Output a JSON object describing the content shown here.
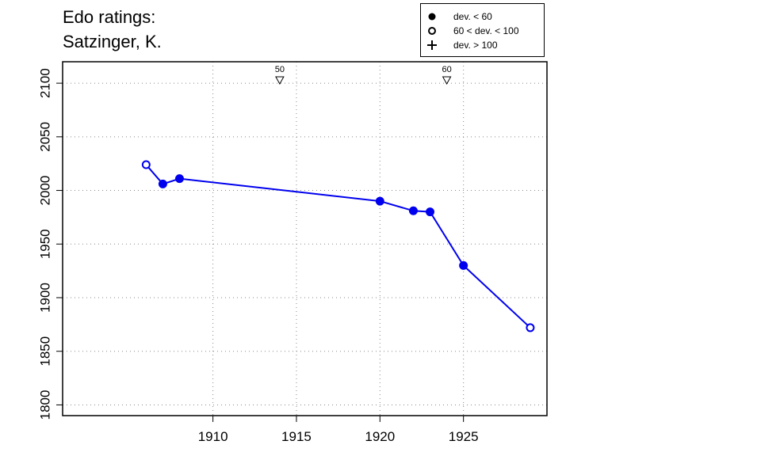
{
  "title_lines": [
    "Edo ratings:",
    "Satzinger, K."
  ],
  "legend": [
    {
      "symbol": "filled-circle",
      "label": "dev. < 60"
    },
    {
      "symbol": "open-circle",
      "label": "60 < dev. < 100"
    },
    {
      "symbol": "plus",
      "label": "dev. > 100"
    }
  ],
  "colors": {
    "series": "#0000ee",
    "axis": "#000000",
    "grid": "#888888"
  },
  "chart_data": {
    "type": "line",
    "xlim": [
      1901,
      1930
    ],
    "ylim": [
      1790,
      2120
    ],
    "x_ticks": [
      1910,
      1915,
      1920,
      1925
    ],
    "y_ticks": [
      1800,
      1850,
      1900,
      1950,
      2000,
      2050,
      2100
    ],
    "grid": true,
    "legend_position": "top-right",
    "series": [
      {
        "points": [
          {
            "x": 1906,
            "y": 2024,
            "marker": "open"
          },
          {
            "x": 1907,
            "y": 2006,
            "marker": "filled"
          },
          {
            "x": 1908,
            "y": 2011,
            "marker": "filled"
          },
          {
            "x": 1920,
            "y": 1990,
            "marker": "filled"
          },
          {
            "x": 1922,
            "y": 1981,
            "marker": "filled"
          },
          {
            "x": 1923,
            "y": 1980,
            "marker": "filled"
          },
          {
            "x": 1925,
            "y": 1930,
            "marker": "filled"
          },
          {
            "x": 1929,
            "y": 1872,
            "marker": "open"
          }
        ]
      }
    ],
    "annotations": [
      {
        "x": 1914,
        "label": "50",
        "marker": "down-triangle"
      },
      {
        "x": 1924,
        "label": "60",
        "marker": "down-triangle"
      }
    ]
  }
}
